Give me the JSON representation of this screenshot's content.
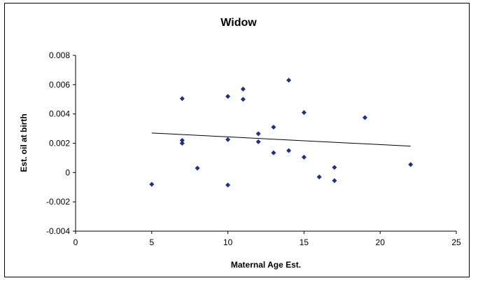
{
  "chart_data": {
    "type": "scatter",
    "title": "Widow",
    "xlabel": "Maternal Age Est.",
    "ylabel": "Est. oil at birth",
    "xlim": [
      0,
      25
    ],
    "ylim": [
      -0.004,
      0.008
    ],
    "x_ticks": [
      0,
      5,
      10,
      15,
      20,
      25
    ],
    "y_ticks": [
      -0.004,
      -0.002,
      0,
      0.002,
      0.004,
      0.006,
      0.008
    ],
    "x_tick_labels": [
      "0",
      "5",
      "10",
      "15",
      "20",
      "25"
    ],
    "y_tick_labels": [
      "-0.004",
      "-0.002",
      "0",
      "0.002",
      "0.004",
      "0.006",
      "0.008"
    ],
    "grid": false,
    "legend": "none",
    "marker_color": "#1f2f8f",
    "marker": "diamond",
    "points": [
      {
        "x": 5,
        "y": -0.0008
      },
      {
        "x": 7,
        "y": 0.00505
      },
      {
        "x": 7,
        "y": 0.0022
      },
      {
        "x": 7,
        "y": 0.002
      },
      {
        "x": 8,
        "y": 0.0003
      },
      {
        "x": 10,
        "y": 0.0052
      },
      {
        "x": 10,
        "y": 0.00225
      },
      {
        "x": 10,
        "y": -0.00085
      },
      {
        "x": 11,
        "y": 0.0057
      },
      {
        "x": 11,
        "y": 0.005
      },
      {
        "x": 12,
        "y": 0.00265
      },
      {
        "x": 12,
        "y": 0.0021
      },
      {
        "x": 13,
        "y": 0.0031
      },
      {
        "x": 13,
        "y": 0.00135
      },
      {
        "x": 14,
        "y": 0.0063
      },
      {
        "x": 14,
        "y": 0.0015
      },
      {
        "x": 15,
        "y": 0.0041
      },
      {
        "x": 15,
        "y": 0.00105
      },
      {
        "x": 16,
        "y": -0.0003
      },
      {
        "x": 17,
        "y": 0.00035
      },
      {
        "x": 17,
        "y": -0.00055
      },
      {
        "x": 19,
        "y": 0.00375
      },
      {
        "x": 22,
        "y": 0.00055
      }
    ],
    "trendline": {
      "type": "linear",
      "color": "#000000",
      "start": {
        "x": 5,
        "y": 0.0027
      },
      "end": {
        "x": 22,
        "y": 0.0018
      }
    }
  }
}
